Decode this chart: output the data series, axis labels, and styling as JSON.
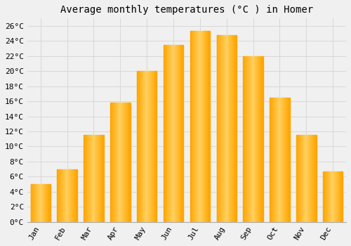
{
  "title": "Average monthly temperatures (°C ) in Homer",
  "months": [
    "Jan",
    "Feb",
    "Mar",
    "Apr",
    "May",
    "Jun",
    "Jul",
    "Aug",
    "Sep",
    "Oct",
    "Nov",
    "Dec"
  ],
  "values": [
    5.0,
    7.0,
    11.5,
    15.8,
    20.0,
    23.5,
    25.3,
    24.8,
    22.0,
    16.5,
    11.5,
    6.7
  ],
  "bar_color": "#FFA500",
  "bar_color_light": "#FFD050",
  "background_color": "#f0f0f0",
  "grid_color": "#d8d8d8",
  "ylim": [
    0,
    27
  ],
  "yticks": [
    0,
    2,
    4,
    6,
    8,
    10,
    12,
    14,
    16,
    18,
    20,
    22,
    24,
    26
  ],
  "title_fontsize": 10,
  "tick_fontsize": 8,
  "font_family": "monospace"
}
